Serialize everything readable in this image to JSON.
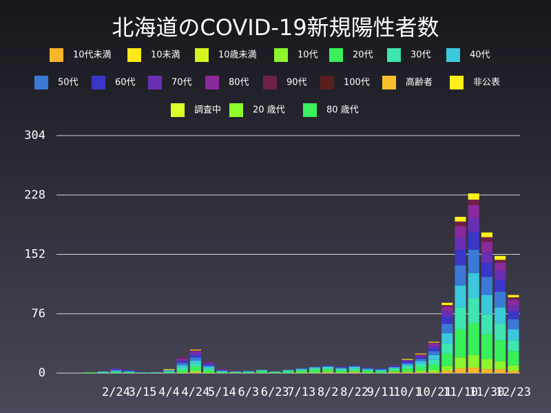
{
  "chart_data": {
    "type": "stacked_bar",
    "title": "北海道のCOVID-19新規陽性者数",
    "categories": [
      null,
      null,
      null,
      null,
      "2/24",
      null,
      "3/15",
      null,
      "4/4",
      null,
      "4/24",
      null,
      "5/14",
      null,
      "6/3",
      null,
      "6/23",
      null,
      "7/13",
      null,
      "8/2",
      null,
      "8/22",
      null,
      "9/11",
      null,
      "10/1",
      null,
      "10/21",
      null,
      "11/10",
      null,
      "11/30",
      null,
      "12/23"
    ],
    "ylim": [
      0,
      304
    ],
    "yticks": [
      0,
      76,
      152,
      228,
      304
    ],
    "grid": true,
    "series": [
      {
        "name": "10代未満",
        "color": "#f9b52b",
        "values": [
          0,
          0,
          0,
          0,
          0,
          0,
          0,
          0,
          0,
          0,
          1,
          0,
          0,
          0,
          0,
          0,
          0,
          0,
          0,
          0,
          1,
          0,
          1,
          0,
          0,
          1,
          1,
          1,
          1,
          3,
          6,
          7,
          5,
          5,
          3
        ]
      },
      {
        "name": "10未満",
        "color": "#ffe81a",
        "values": [
          0,
          0,
          0,
          0,
          0,
          0,
          0,
          0,
          0,
          0,
          0,
          0,
          0,
          0,
          0,
          0,
          0,
          0,
          0,
          0,
          0,
          0,
          0,
          0,
          0,
          0,
          0,
          0,
          0,
          0,
          0,
          0,
          0,
          0,
          0
        ]
      },
      {
        "name": "10歳未満",
        "color": "#d6f51e",
        "values": [
          0,
          0,
          0,
          0,
          0,
          0,
          0,
          0,
          0,
          0,
          0,
          0,
          0,
          0,
          0,
          0,
          0,
          0,
          0,
          0,
          0,
          0,
          0,
          0,
          0,
          0,
          0,
          0,
          0,
          0,
          0,
          0,
          0,
          0,
          0
        ]
      },
      {
        "name": "10代",
        "color": "#8cf52b",
        "values": [
          0,
          0,
          0,
          0,
          0,
          0,
          0,
          0,
          0,
          1,
          2,
          1,
          0,
          0,
          0,
          0,
          0,
          0,
          1,
          1,
          1,
          1,
          1,
          1,
          0,
          1,
          1,
          2,
          3,
          6,
          14,
          16,
          13,
          10,
          7
        ]
      },
      {
        "name": "20代",
        "color": "#38f05a",
        "values": [
          0,
          0,
          1,
          0,
          1,
          1,
          1,
          0,
          1,
          3,
          5,
          3,
          1,
          1,
          1,
          2,
          1,
          2,
          2,
          3,
          3,
          2,
          2,
          2,
          2,
          2,
          4,
          5,
          7,
          16,
          36,
          41,
          32,
          27,
          18
        ]
      },
      {
        "name": "30代",
        "color": "#3ee5b0",
        "values": [
          0,
          0,
          0,
          1,
          1,
          0,
          0,
          1,
          1,
          3,
          4,
          2,
          1,
          1,
          1,
          1,
          1,
          1,
          1,
          2,
          2,
          2,
          2,
          1,
          1,
          2,
          3,
          4,
          6,
          13,
          28,
          32,
          25,
          21,
          14
        ]
      },
      {
        "name": "40代",
        "color": "#3cc8dc",
        "values": [
          0,
          0,
          0,
          1,
          1,
          1,
          0,
          0,
          1,
          3,
          4,
          2,
          1,
          0,
          0,
          1,
          0,
          1,
          1,
          1,
          1,
          1,
          2,
          1,
          1,
          1,
          2,
          3,
          6,
          13,
          28,
          32,
          25,
          21,
          14
        ]
      },
      {
        "name": "50代",
        "color": "#3a7ad6",
        "values": [
          0,
          0,
          0,
          0,
          1,
          1,
          0,
          0,
          1,
          3,
          4,
          2,
          0,
          0,
          1,
          0,
          0,
          0,
          1,
          1,
          1,
          1,
          1,
          1,
          1,
          1,
          2,
          3,
          5,
          12,
          26,
          30,
          23,
          20,
          13
        ]
      },
      {
        "name": "60代",
        "color": "#3a36c8",
        "values": [
          0,
          0,
          0,
          0,
          1,
          1,
          1,
          0,
          0,
          2,
          3,
          2,
          1,
          0,
          0,
          0,
          0,
          0,
          0,
          0,
          1,
          1,
          1,
          1,
          1,
          1,
          2,
          2,
          4,
          9,
          20,
          23,
          18,
          15,
          10
        ]
      },
      {
        "name": "70代",
        "color": "#6a2eb4",
        "values": [
          0,
          0,
          0,
          0,
          1,
          0,
          0,
          0,
          0,
          2,
          3,
          1,
          0,
          1,
          0,
          0,
          0,
          0,
          0,
          0,
          0,
          0,
          0,
          0,
          0,
          1,
          1,
          2,
          3,
          7,
          16,
          18,
          14,
          12,
          8
        ]
      },
      {
        "name": "80代",
        "color": "#8a2a9c",
        "values": [
          0,
          0,
          0,
          0,
          0,
          0,
          0,
          0,
          0,
          2,
          2,
          1,
          1,
          0,
          0,
          0,
          0,
          0,
          0,
          0,
          0,
          0,
          0,
          0,
          0,
          0,
          1,
          1,
          3,
          6,
          14,
          16,
          13,
          10,
          7
        ]
      },
      {
        "name": "90代",
        "color": "#6e2046",
        "values": [
          0,
          0,
          0,
          0,
          0,
          0,
          0,
          0,
          0,
          1,
          1,
          1,
          0,
          0,
          0,
          0,
          0,
          0,
          0,
          0,
          0,
          0,
          0,
          0,
          0,
          0,
          0,
          1,
          1,
          2,
          6,
          7,
          6,
          4,
          3
        ]
      },
      {
        "name": "100代",
        "color": "#5a1e1e",
        "values": [
          0,
          0,
          0,
          0,
          0,
          0,
          0,
          0,
          0,
          0,
          0,
          0,
          0,
          0,
          0,
          0,
          0,
          0,
          0,
          0,
          0,
          0,
          0,
          0,
          0,
          0,
          0,
          0,
          0,
          0,
          0,
          0,
          0,
          0,
          0
        ]
      },
      {
        "name": "高齢者",
        "color": "#f9c02a",
        "values": [
          0,
          0,
          0,
          0,
          0,
          0,
          0,
          0,
          0,
          0,
          0,
          0,
          0,
          0,
          0,
          0,
          0,
          0,
          0,
          0,
          0,
          0,
          0,
          0,
          0,
          0,
          0,
          0,
          0,
          0,
          0,
          0,
          0,
          0,
          0
        ]
      },
      {
        "name": "非公表",
        "color": "#ffef1a",
        "values": [
          0,
          0,
          0,
          0,
          0,
          0,
          0,
          0,
          1,
          0,
          1,
          0,
          0,
          0,
          0,
          0,
          0,
          0,
          0,
          0,
          0,
          0,
          0,
          0,
          0,
          0,
          1,
          1,
          1,
          3,
          6,
          8,
          6,
          5,
          3
        ]
      },
      {
        "name": "調査中",
        "color": "#dcff2a",
        "values": [
          0,
          0,
          0,
          0,
          0,
          0,
          0,
          0,
          0,
          0,
          0,
          0,
          0,
          0,
          0,
          0,
          0,
          0,
          0,
          0,
          0,
          0,
          0,
          0,
          0,
          0,
          0,
          0,
          0,
          0,
          0,
          0,
          0,
          0,
          0
        ]
      },
      {
        "name": "20 歳代",
        "color": "#8cff2a",
        "values": [
          0,
          0,
          0,
          0,
          0,
          0,
          0,
          0,
          0,
          0,
          0,
          0,
          0,
          0,
          0,
          0,
          0,
          0,
          0,
          0,
          0,
          0,
          0,
          0,
          0,
          0,
          0,
          0,
          0,
          0,
          0,
          0,
          0,
          0,
          0
        ]
      },
      {
        "name": "80 歳代",
        "color": "#3cf060",
        "values": [
          0,
          0,
          0,
          0,
          0,
          0,
          0,
          0,
          0,
          0,
          0,
          0,
          0,
          0,
          0,
          0,
          0,
          0,
          0,
          0,
          0,
          0,
          0,
          0,
          0,
          0,
          0,
          0,
          0,
          0,
          0,
          0,
          0,
          0,
          0
        ]
      }
    ]
  }
}
